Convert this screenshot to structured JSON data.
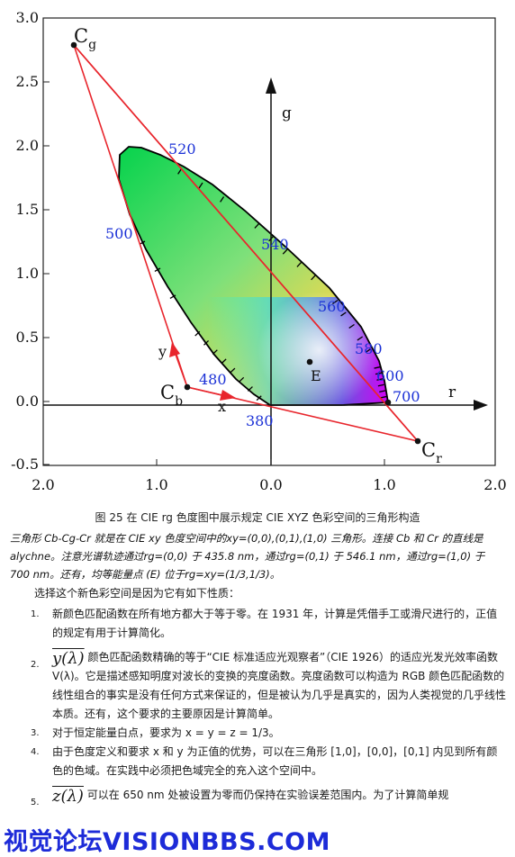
{
  "diagram": {
    "axis_labels": {
      "g": "g",
      "r": "r",
      "x": "x",
      "y": "y"
    },
    "x_ticks": [
      "2.0",
      "1.0",
      "0.0",
      "1.0",
      "2.0"
    ],
    "y_ticks": [
      "3.0",
      "2.5",
      "2.0",
      "1.5",
      "1.0",
      "0.5",
      "0.0",
      "-0.5"
    ],
    "points": {
      "cg": "C",
      "cg_sub": "g",
      "cb": "C",
      "cb_sub": "b",
      "cr": "C",
      "cr_sub": "r",
      "e": "E"
    },
    "wavelengths": [
      "520",
      "500",
      "540",
      "560",
      "580",
      "480",
      "600",
      "700",
      "380"
    ],
    "colors": {
      "triangle": "#e8262d",
      "wavelength_text": "#1a30d6",
      "axis": "#111111"
    }
  },
  "caption": "图 25 在 CIE rg 色度图中展示规定 CIE XYZ 色彩空间的三角形构造",
  "note": "三角形 Cb-Cg-Cr 就是在 CIE xy 色度空间中的xy=(0,0),(0,1),(1,0) 三角形。连接 Cb 和 Cr 的直线是 alychne。注意光谱轨迹通过rg=(0,0) 于 435.8 nm，通过rg=(0,1) 于 546.1 nm，通过rg=(1,0) 于 700 nm。还有，均等能量点 (E) 位于rg=xy=(1/3,1/3)。",
  "intro": "选择这个新色彩空间是因为它有如下性质：",
  "properties": [
    {
      "num": "1.",
      "text": "新颜色匹配函数在所有地方都大于等于零。在 1931 年，计算是凭借手工或滑尺进行的，正值的规定有用于计算简化。"
    },
    {
      "num": "2.",
      "math": "y(λ)",
      "text": " 颜色匹配函数精确的等于“CIE 标准适应光观察者”（CIE 1926）的适应光发光效率函数 V(λ)。它是描述感知明度对波长的变换的亮度函数。亮度函数可以构造为 RGB 颜色匹配函数的线性组合的事实是没有任何方式来保证的，但是被认为几乎是真实的，因为人类视觉的几乎线性本质。还有，这个要求的主要原因是计算简单。"
    },
    {
      "num": "3.",
      "text": "对于恒定能量白点，要求为 x = y = z = 1/3。"
    },
    {
      "num": "4.",
      "text": "由于色度定义和要求 x 和 y 为正值的优势，可以在三角形 [1,0]，[0,0]，[0,1] 内见到所有颜色的色域。在实践中必须把色域完全的充入这个空间中。"
    },
    {
      "num": "5.",
      "math": "z(λ)",
      "text": " 可以在 650 nm 处被设置为零而仍保持在实验误差范围内。为了计算简单规"
    }
  ],
  "watermark": "视觉论坛VISIONBBS.COM"
}
